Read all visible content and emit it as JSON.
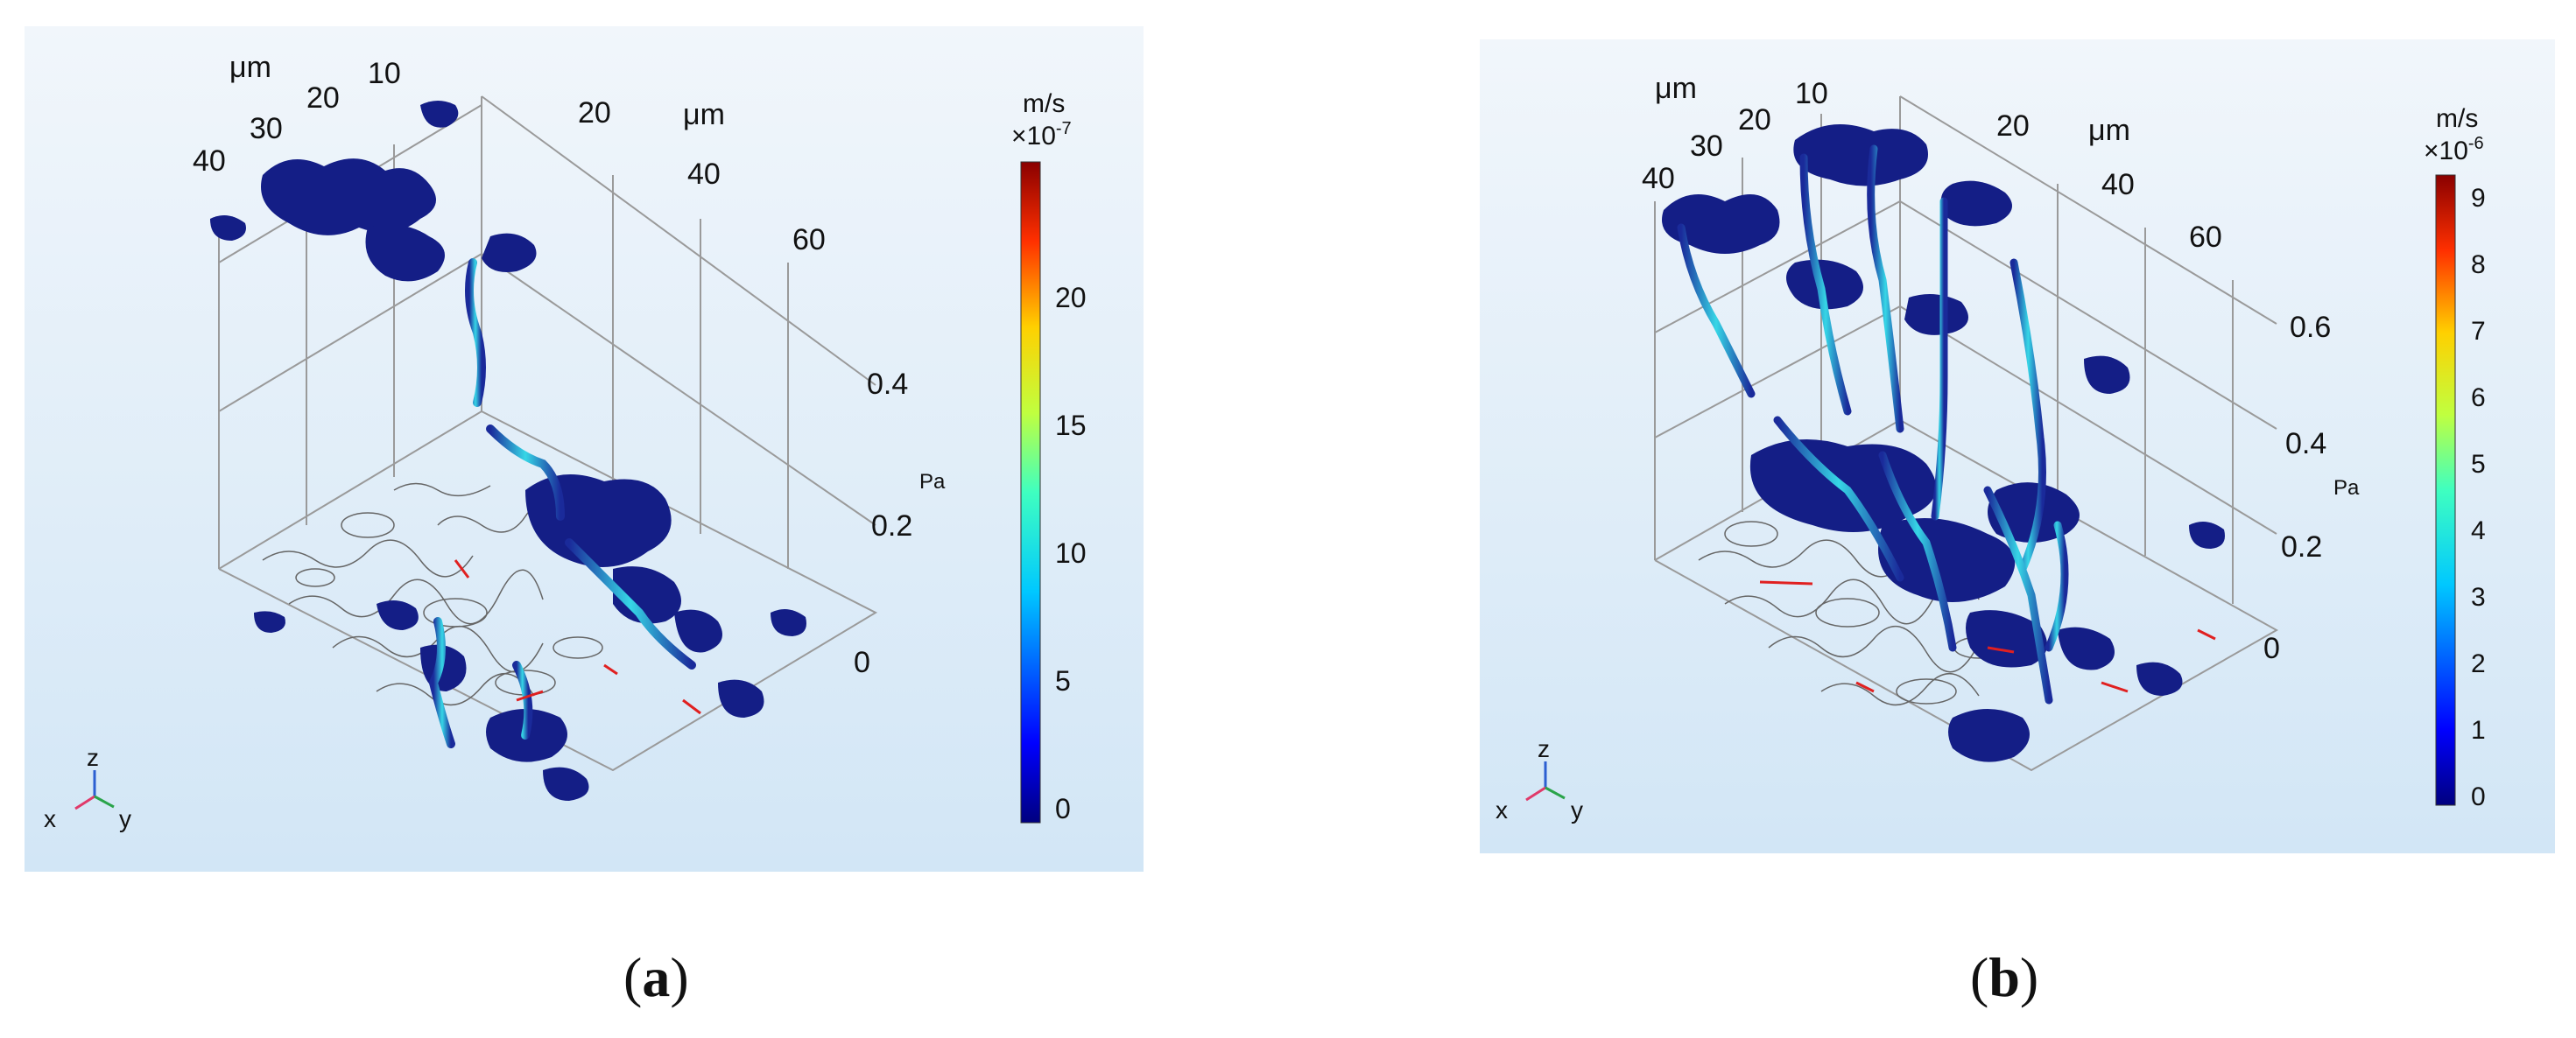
{
  "panels": [
    {
      "id": "a",
      "axis_left_unit": "μm",
      "axis_left_ticks": [
        "40",
        "30",
        "20",
        "10"
      ],
      "axis_right_unit": "μm",
      "axis_right_ticks": [
        "20",
        "40",
        "60"
      ],
      "axis_z_unit": "Pa",
      "axis_z_ticks": [
        "0.4",
        "0.2",
        "0"
      ],
      "colorbar_unit": "m/s",
      "colorbar_scale_base": "×10",
      "colorbar_scale_exp": "-7",
      "colorbar_ticks": [
        "20",
        "15",
        "10",
        "5",
        "0"
      ],
      "triad": {
        "z": "z",
        "x": "x",
        "y": "y"
      },
      "caption": "a"
    },
    {
      "id": "b",
      "axis_left_unit": "μm",
      "axis_left_ticks": [
        "40",
        "30",
        "20",
        "10"
      ],
      "axis_right_unit": "μm",
      "axis_right_ticks": [
        "20",
        "40",
        "60"
      ],
      "axis_z_unit": "Pa",
      "axis_z_ticks": [
        "0.6",
        "0.4",
        "0.2",
        "0"
      ],
      "colorbar_unit": "m/s",
      "colorbar_scale_base": "×10",
      "colorbar_scale_exp": "-6",
      "colorbar_ticks": [
        "9",
        "8",
        "7",
        "6",
        "5",
        "4",
        "3",
        "2",
        "1",
        "0"
      ],
      "triad": {
        "z": "z",
        "x": "x",
        "y": "y"
      },
      "caption": "b"
    }
  ],
  "colors": {
    "background_top": "#eef4fb",
    "background_bottom": "#d6e8f7",
    "pore_blue": "#141e86",
    "pore_cyan": "#2fd0e0",
    "flow_arrow": "#e02020",
    "contour": "#555555"
  }
}
